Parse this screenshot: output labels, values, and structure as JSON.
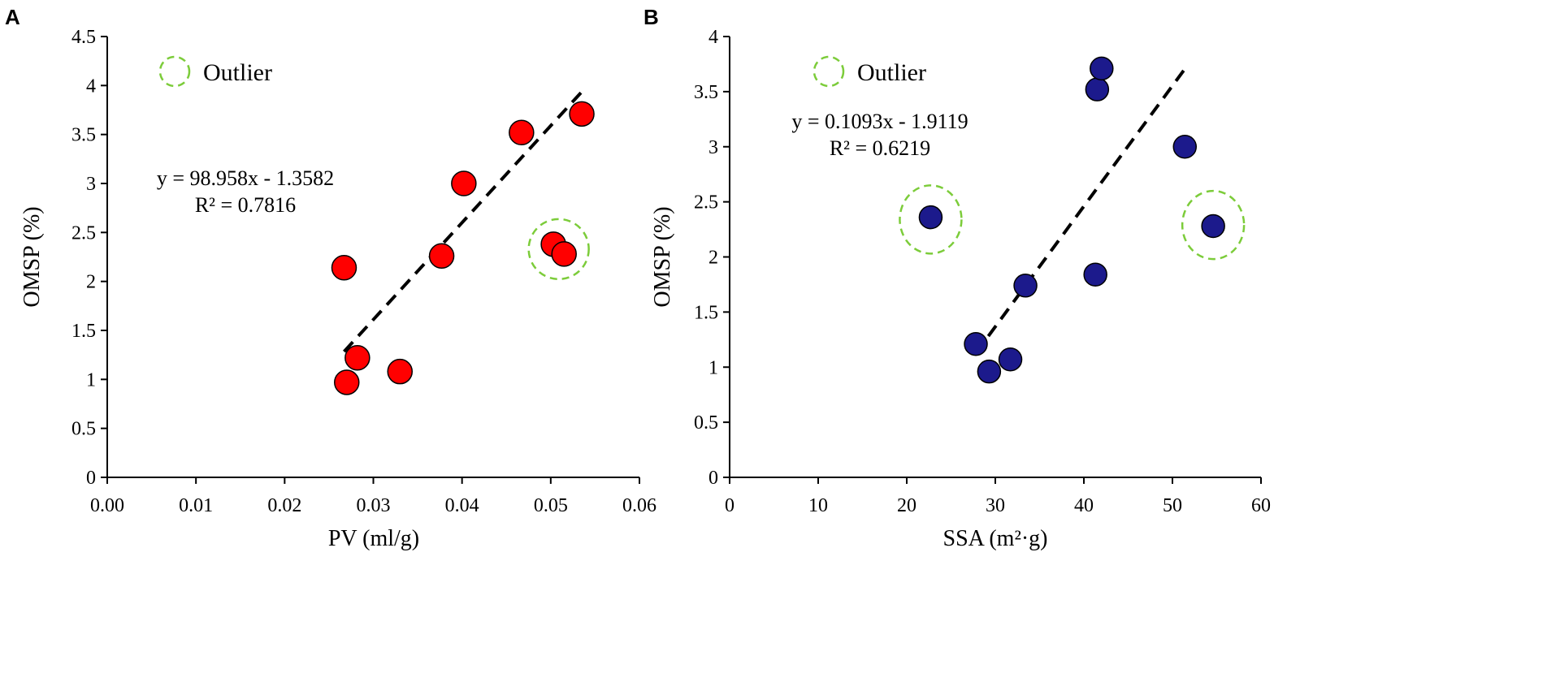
{
  "chart_data": [
    {
      "panel": "A",
      "type": "scatter",
      "xlabel": "PV (ml/g)",
      "ylabel": "OMSP (%)",
      "xlim": [
        0,
        0.06
      ],
      "ylim": [
        0,
        4.5
      ],
      "xticks": [
        "0.00",
        "0.01",
        "0.02",
        "0.03",
        "0.04",
        "0.05",
        "0.06"
      ],
      "yticks": [
        "0",
        "0.5",
        "1",
        "1.5",
        "2",
        "2.5",
        "3",
        "3.5",
        "4",
        "4.5"
      ],
      "point_color": "#ff0000",
      "points": [
        {
          "x": 0.0267,
          "y": 2.14
        },
        {
          "x": 0.027,
          "y": 0.97
        },
        {
          "x": 0.0282,
          "y": 1.22
        },
        {
          "x": 0.033,
          "y": 1.08
        },
        {
          "x": 0.0377,
          "y": 2.26
        },
        {
          "x": 0.0402,
          "y": 3.0
        },
        {
          "x": 0.0467,
          "y": 3.52
        },
        {
          "x": 0.0535,
          "y": 3.71
        },
        {
          "x": 0.0503,
          "y": 2.38
        },
        {
          "x": 0.0515,
          "y": 2.28
        }
      ],
      "outliers": [
        {
          "x": 0.0509,
          "y": 2.33
        }
      ],
      "trendline": {
        "x_start": 0.0267,
        "x_end": 0.0537,
        "slope": 98.958,
        "intercept": -1.3582
      },
      "equation": "y = 98.958x - 1.3582",
      "r2": "R² = 0.7816",
      "legend": "Outlier"
    },
    {
      "panel": "B",
      "type": "scatter",
      "xlabel": "SSA (m²·g)",
      "ylabel": "OMSP (%)",
      "xlim": [
        0,
        60
      ],
      "ylim": [
        0,
        4
      ],
      "xticks": [
        "0",
        "10",
        "20",
        "30",
        "40",
        "50",
        "60"
      ],
      "yticks": [
        "0",
        "0.5",
        "1",
        "1.5",
        "2",
        "2.5",
        "3",
        "3.5",
        "4"
      ],
      "point_color": "#1c1a8c",
      "points": [
        {
          "x": 22.7,
          "y": 2.36
        },
        {
          "x": 27.8,
          "y": 1.21
        },
        {
          "x": 29.3,
          "y": 0.96
        },
        {
          "x": 31.7,
          "y": 1.07
        },
        {
          "x": 33.4,
          "y": 1.74
        },
        {
          "x": 41.3,
          "y": 1.84
        },
        {
          "x": 41.5,
          "y": 3.52
        },
        {
          "x": 42.0,
          "y": 3.71
        },
        {
          "x": 51.4,
          "y": 3.0
        },
        {
          "x": 54.6,
          "y": 2.28
        }
      ],
      "outliers": [
        {
          "x": 22.7,
          "y": 2.34
        },
        {
          "x": 54.6,
          "y": 2.29
        }
      ],
      "trendline": {
        "x_start": 27.8,
        "x_end": 51.3,
        "slope": 0.1093,
        "intercept": -1.9119
      },
      "equation": "y = 0.1093x - 1.9119",
      "r2": "R² = 0.6219",
      "legend": "Outlier"
    }
  ],
  "colors": {
    "outlier_ring": "#7ccc3a",
    "axis": "#000000",
    "trendline": "#000000"
  }
}
